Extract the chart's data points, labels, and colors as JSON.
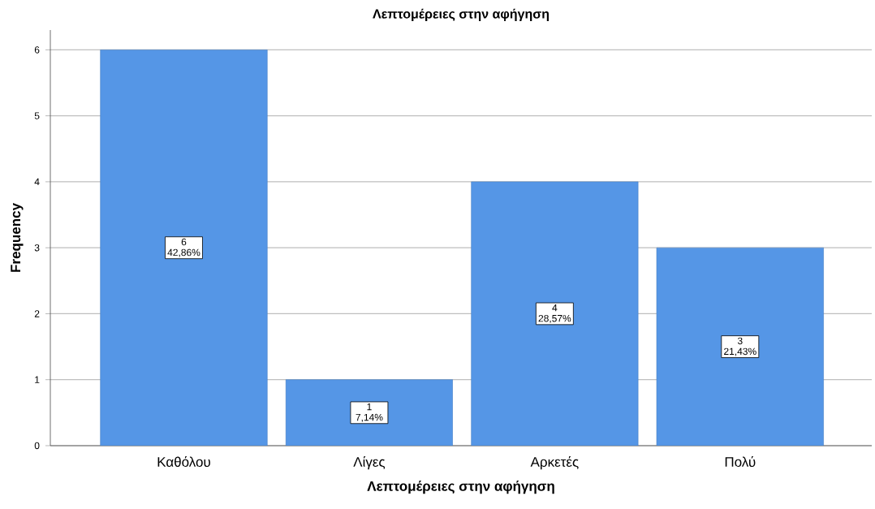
{
  "chart_data": {
    "type": "bar",
    "title": "Λεπτομέρειες στην αφήγηση",
    "xlabel": "Λεπτομέρειες στην αφήγηση",
    "ylabel": "Frequency",
    "categories": [
      "Καθόλου",
      "Λίγες",
      "Αρκετές",
      "Πολύ"
    ],
    "values": [
      6,
      1,
      4,
      3
    ],
    "value_labels": [
      "6 42,86%",
      "1 7,14%",
      "4 28,57%",
      "3 21,43%"
    ],
    "color": "#5596e6",
    "ylim": [
      0,
      6.3
    ],
    "yticks": [
      0,
      1,
      2,
      3,
      4,
      5,
      6
    ],
    "grid": "y"
  }
}
